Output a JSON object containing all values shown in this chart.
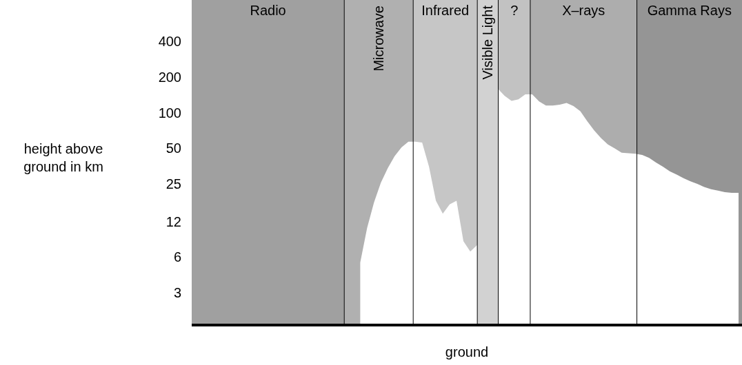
{
  "chart_data": {
    "type": "area",
    "ylabel": "height above ground in km",
    "xlabel": "ground",
    "log": "y",
    "ylim": [
      1.6,
      900
    ],
    "yticks": [
      3,
      6,
      12,
      25,
      50,
      100,
      200,
      400
    ],
    "tick_labels": "y",
    "grid": false,
    "categories": [
      null,
      null,
      null,
      null,
      null,
      null,
      null,
      null,
      null,
      null,
      null,
      null,
      null,
      null,
      null,
      null,
      null,
      null,
      null,
      null,
      null,
      null,
      null,
      null,
      null,
      null,
      null,
      null,
      null,
      null,
      null,
      null,
      null,
      null,
      null,
      null,
      null,
      null,
      null,
      null,
      null,
      null,
      null,
      null,
      null,
      null,
      null,
      null,
      null,
      null,
      null,
      null,
      null,
      null,
      null,
      null,
      null,
      null,
      null,
      null,
      null,
      null,
      null,
      null,
      null,
      null,
      null,
      null,
      null,
      null,
      null,
      null,
      null,
      null,
      null,
      null,
      null,
      null,
      null,
      null
    ],
    "series": [
      {
        "color": "#ffffff",
        "values": [
          null,
          null,
          null,
          null,
          null,
          null,
          null,
          null,
          null,
          null,
          null,
          null,
          null,
          null,
          null,
          null,
          null,
          null,
          null,
          null,
          null,
          null,
          null,
          null,
          5.4,
          10.6,
          17.4,
          25.6,
          34,
          43,
          51,
          57,
          57,
          56,
          35,
          18,
          14,
          16.8,
          18,
          8.2,
          6.7,
          7.6,
          null,
          null,
          160,
          139,
          126,
          130,
          143,
          143,
          125,
          115,
          115,
          117,
          121,
          114,
          103,
          85,
          71,
          61,
          54,
          50,
          46,
          45.5,
          45,
          44,
          41.5,
          38,
          35,
          32,
          30,
          28,
          26.3,
          25,
          23.6,
          22.6,
          22,
          21.3,
          21,
          21
        ]
      }
    ],
    "annotations": [
      "Radio",
      "Microwave",
      "Infrared",
      "Visible Light",
      "?",
      "X–rays",
      "Gamma Rays"
    ]
  }
}
